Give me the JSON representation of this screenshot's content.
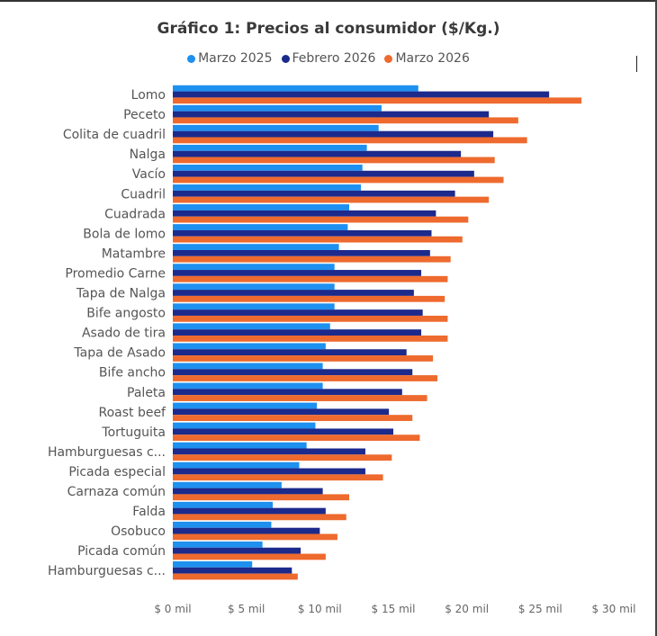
{
  "chart_data": {
    "type": "bar",
    "orientation": "horizontal",
    "title": "Gráfico 1: Precios al consumidor ($/Kg.)",
    "legend_position": "top-center",
    "grid": false,
    "categories": [
      "Lomo",
      "Peceto",
      "Colita de cuadril",
      "Nalga",
      "Vacío",
      "Cuadril",
      "Cuadrada",
      "Bola de lomo",
      "Matambre",
      "Promedio Carne",
      "Tapa de Nalga",
      "Bife angosto",
      "Asado de tira",
      "Tapa de Asado",
      "Bife ancho",
      "Paleta",
      "Roast beef",
      "Tortuguita",
      "Hamburguesas c...",
      "Picada especial",
      "Carnaza común",
      "Falda",
      "Osobuco",
      "Picada común",
      "Hamburguesas c..."
    ],
    "series": [
      {
        "name": "Marzo 2025",
        "color": "#1e90ef",
        "values": [
          16700,
          14200,
          14000,
          13200,
          12900,
          12800,
          12000,
          11900,
          11300,
          11000,
          11000,
          11000,
          10700,
          10400,
          10200,
          10200,
          9800,
          9700,
          9100,
          8600,
          7400,
          6800,
          6700,
          6100,
          5400
        ]
      },
      {
        "name": "Febrero 2026",
        "color": "#1c2a8c",
        "values": [
          25600,
          21500,
          21800,
          19600,
          20500,
          19200,
          17900,
          17600,
          17500,
          16900,
          16400,
          17000,
          16900,
          15900,
          16300,
          15600,
          14700,
          15000,
          13100,
          13100,
          10200,
          10400,
          10000,
          8700,
          8100
        ]
      },
      {
        "name": "Marzo 2026",
        "color": "#ee6a2e",
        "values": [
          27800,
          23500,
          24100,
          21900,
          22500,
          21500,
          20100,
          19700,
          18900,
          18700,
          18500,
          18700,
          18700,
          17700,
          18000,
          17300,
          16300,
          16800,
          14900,
          14300,
          12000,
          11800,
          11200,
          10400,
          8500
        ]
      }
    ],
    "xlim": [
      0,
      30000
    ],
    "xticks": [
      0,
      5000,
      10000,
      15000,
      20000,
      25000,
      30000
    ],
    "xtick_labels": [
      "$ 0 mil",
      "$ 5 mil",
      "$ 10 mil",
      "$ 15 mil",
      "$ 20 mil",
      "$ 25 mil",
      "$ 30 mil"
    ]
  }
}
